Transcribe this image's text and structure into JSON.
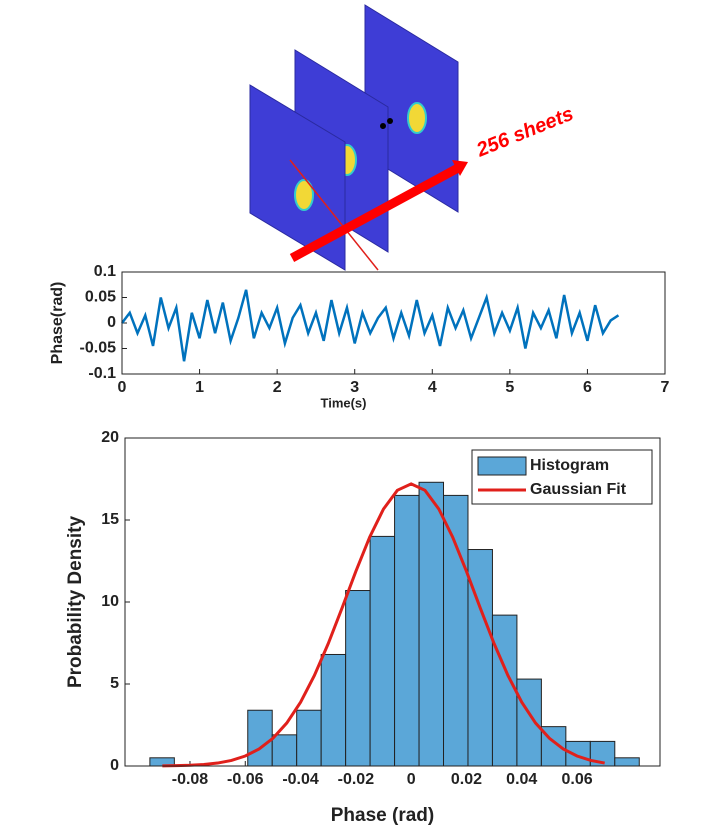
{
  "illustration": {
    "annotation": "256 sheets"
  },
  "chart_data": [
    {
      "type": "line",
      "xlabel": "Time(s)",
      "ylabel": "Phase(rad)",
      "x": [
        0,
        0.1,
        0.2,
        0.3,
        0.4,
        0.5,
        0.6,
        0.7,
        0.8,
        0.9,
        1.0,
        1.1,
        1.2,
        1.3,
        1.4,
        1.5,
        1.6,
        1.7,
        1.8,
        1.9,
        2.0,
        2.1,
        2.2,
        2.3,
        2.4,
        2.5,
        2.6,
        2.7,
        2.8,
        2.9,
        3.0,
        3.1,
        3.2,
        3.3,
        3.4,
        3.5,
        3.6,
        3.7,
        3.8,
        3.9,
        4.0,
        4.1,
        4.2,
        4.3,
        4.4,
        4.5,
        4.6,
        4.7,
        4.8,
        4.9,
        5.0,
        5.1,
        5.2,
        5.3,
        5.4,
        5.5,
        5.6,
        5.7,
        5.8,
        5.9,
        6.0,
        6.1,
        6.2,
        6.3,
        6.4
      ],
      "values": [
        0.0,
        0.02,
        -0.02,
        0.015,
        -0.045,
        0.05,
        -0.01,
        0.03,
        -0.075,
        0.02,
        -0.03,
        0.045,
        -0.02,
        0.04,
        -0.035,
        0.01,
        0.065,
        -0.03,
        0.02,
        -0.01,
        0.03,
        -0.04,
        0.01,
        0.035,
        -0.02,
        0.02,
        -0.035,
        0.045,
        -0.02,
        0.03,
        -0.04,
        0.02,
        -0.02,
        0.01,
        0.03,
        -0.03,
        0.02,
        -0.025,
        0.045,
        -0.02,
        0.015,
        -0.045,
        0.03,
        -0.01,
        0.025,
        -0.03,
        0.01,
        0.05,
        -0.02,
        0.02,
        -0.015,
        0.03,
        -0.05,
        0.02,
        -0.01,
        0.025,
        -0.03,
        0.055,
        -0.02,
        0.02,
        -0.035,
        0.035,
        -0.02,
        0.005,
        0.015
      ],
      "color": "#0072bd",
      "xlim": [
        0,
        7
      ],
      "xticks": [
        0,
        1,
        2,
        3,
        4,
        5,
        6,
        7
      ],
      "ylim": [
        -0.1,
        0.1
      ],
      "yticks": [
        -0.1,
        -0.05,
        0,
        0.05,
        0.1
      ]
    },
    {
      "type": "histogram",
      "xlabel": "Phase (rad)",
      "ylabel": "Probability Density",
      "name": "Histogram",
      "color": "#5ba7d8",
      "bins": [
        -0.0945,
        -0.08565,
        -0.0768,
        -0.06795,
        -0.0591,
        -0.05025,
        -0.0414,
        -0.03255,
        -0.0237,
        -0.01485,
        -0.006,
        0.00285,
        0.0117,
        0.02055,
        0.0294,
        0.03825,
        0.0471,
        0.05595,
        0.0648,
        0.07365,
        0.0825
      ],
      "values": [
        0.5,
        0,
        0,
        0,
        3.4,
        1.9,
        3.4,
        6.8,
        10.7,
        14.0,
        16.5,
        17.3,
        16.5,
        13.2,
        9.2,
        5.3,
        2.4,
        1.5,
        1.5,
        0.5
      ],
      "fit": {
        "name": "Gaussian Fit",
        "color": "#e0201b",
        "x": [
          -0.09,
          -0.085,
          -0.08,
          -0.075,
          -0.07,
          -0.065,
          -0.06,
          -0.055,
          -0.05,
          -0.045,
          -0.04,
          -0.035,
          -0.03,
          -0.025,
          -0.02,
          -0.015,
          -0.01,
          -0.005,
          0,
          0.005,
          0.01,
          0.015,
          0.02,
          0.025,
          0.03,
          0.035,
          0.04,
          0.045,
          0.05,
          0.055,
          0.06,
          0.065,
          0.07
        ],
        "values": [
          0.0093,
          0.021,
          0.045,
          0.093,
          0.18,
          0.34,
          0.61,
          1.04,
          1.69,
          2.62,
          3.89,
          5.52,
          7.46,
          9.63,
          11.87,
          13.96,
          15.67,
          16.81,
          17.2,
          16.81,
          15.67,
          13.96,
          11.87,
          9.63,
          7.46,
          5.52,
          3.89,
          2.62,
          1.69,
          1.04,
          0.61,
          0.34,
          0.18
        ]
      },
      "legend": "upper right",
      "xlim": [
        -0.1035,
        0.09
      ],
      "xticks": [
        -0.08,
        -0.06,
        -0.04,
        -0.02,
        0,
        0.02,
        0.04,
        0.06
      ],
      "ylim": [
        0,
        20
      ],
      "yticks": [
        0,
        5,
        10,
        15,
        20
      ]
    }
  ]
}
